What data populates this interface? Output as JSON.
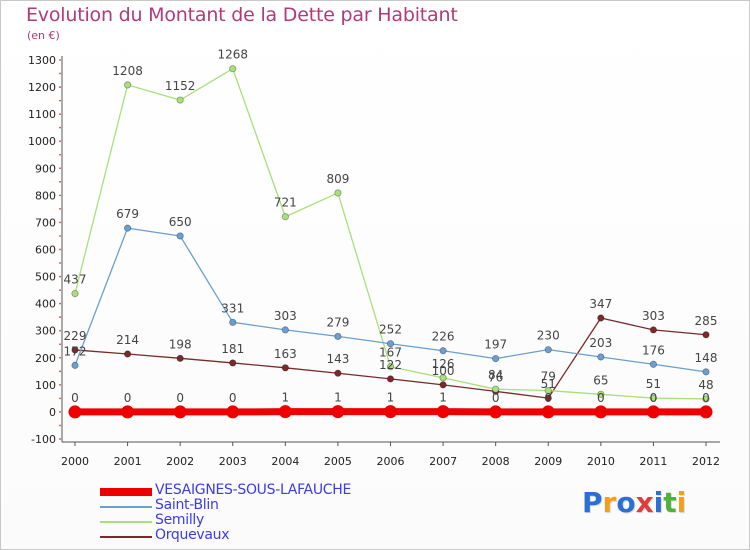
{
  "title": "Evolution du Montant de la Dette par Habitant",
  "unit": "(en €)",
  "logo": {
    "text": "Proxiti",
    "colors": [
      "#2b6fd6",
      "#f0a020",
      "#2b6fd6",
      "#e23b3b",
      "#2b6fd6",
      "#4fb33a",
      "#f0a020"
    ]
  },
  "chart_data": {
    "type": "line",
    "x": [
      "2000",
      "2001",
      "2002",
      "2003",
      "2004",
      "2005",
      "2006",
      "2007",
      "2008",
      "2009",
      "2010",
      "2011",
      "2012"
    ],
    "ylim": [
      -100,
      1300
    ],
    "yticks": [
      "-100",
      "0",
      "100",
      "200",
      "300",
      "400",
      "500",
      "600",
      "700",
      "800",
      "900",
      "1000",
      "1100",
      "1200",
      "1300"
    ],
    "grid": false,
    "legend_position": "bottom-left",
    "series": [
      {
        "name": "VESAIGNES-SOUS-LAFAUCHE",
        "color": "#ee0000",
        "values": [
          0,
          0,
          0,
          0,
          1,
          1,
          1,
          1,
          0,
          0,
          0,
          0,
          0
        ],
        "labels": [
          "0",
          "0",
          "0",
          "0",
          "1",
          "1",
          "1",
          "1",
          "0",
          "0",
          "0",
          "0",
          "0"
        ]
      },
      {
        "name": "Saint-Blin",
        "color": "#6a9fd0",
        "values": [
          172,
          679,
          650,
          331,
          303,
          279,
          252,
          226,
          197,
          230,
          203,
          176,
          148
        ],
        "labels": [
          "172",
          "679",
          "650",
          "331",
          "303",
          "279",
          "252",
          "226",
          "197",
          "230",
          "203",
          "176",
          "148"
        ]
      },
      {
        "name": "Semilly",
        "color": "#a8e07a",
        "values": [
          437,
          1208,
          1152,
          1268,
          721,
          809,
          167,
          126,
          84,
          79,
          65,
          51,
          48
        ],
        "labels": [
          "437",
          "1208",
          "1152",
          "1268",
          "721",
          "809",
          "167",
          "126",
          "84",
          "79",
          "65",
          "51",
          "48"
        ]
      },
      {
        "name": "Orquevaux",
        "color": "#7a2a2a",
        "values": [
          229,
          214,
          198,
          181,
          163,
          143,
          122,
          100,
          76,
          51,
          347,
          303,
          285
        ],
        "labels": [
          "229",
          "214",
          "198",
          "181",
          "163",
          "143",
          "122",
          "100",
          "76",
          "51",
          "347",
          "303",
          "285"
        ]
      }
    ]
  }
}
